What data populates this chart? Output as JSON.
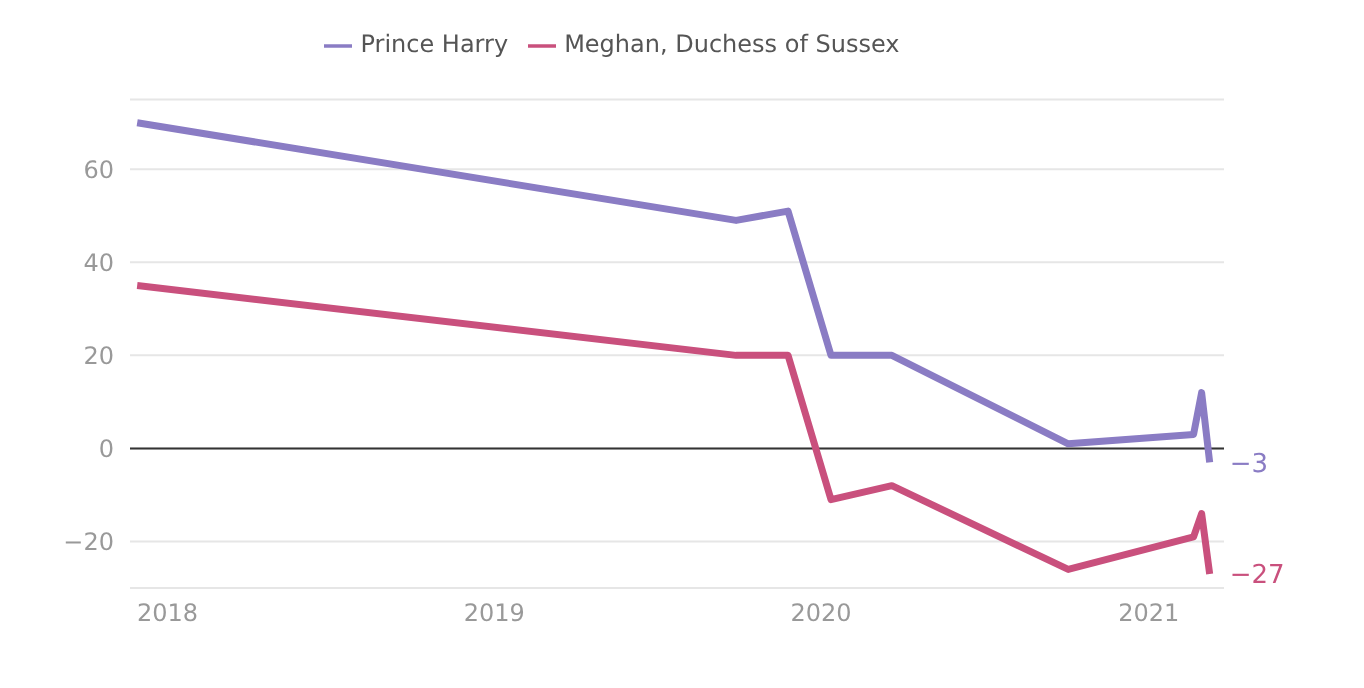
{
  "chart_data": {
    "type": "line",
    "x": [
      "2017-11-28",
      "2019-09-28",
      "2019-11-25",
      "2020-01-12",
      "2020-03-20",
      "2020-10-03",
      "2021-02-20",
      "2021-03-01",
      "2021-03-10"
    ],
    "series": [
      {
        "name": "Prince Harry",
        "color": "#8a7cc4",
        "values": [
          70,
          49,
          51,
          20,
          20,
          1,
          3,
          12,
          -3
        ]
      },
      {
        "name": "Meghan, Duchess of Sussex",
        "color": "#c9507d",
        "values": [
          35,
          20,
          20,
          -11,
          -8,
          -26,
          -19,
          -14,
          -27
        ]
      }
    ],
    "xlim": [
      "2017-11-20",
      "2021-03-26"
    ],
    "xticks": [
      "2018",
      "2019",
      "2020",
      "2021"
    ],
    "ylim": [
      -30,
      75
    ],
    "yticks": [
      -20,
      0,
      20,
      40,
      60
    ],
    "ref_lines": [
      {
        "axis": "y",
        "value": 0,
        "color": "#333333"
      }
    ],
    "annotations": [
      {
        "text": "−3",
        "x": "2021-03-10",
        "y": -3
      },
      {
        "text": "−27",
        "x": "2021-03-10",
        "y": -27
      }
    ],
    "grid": "y",
    "legend": "top",
    "marker": "none",
    "line_style": "solid"
  }
}
